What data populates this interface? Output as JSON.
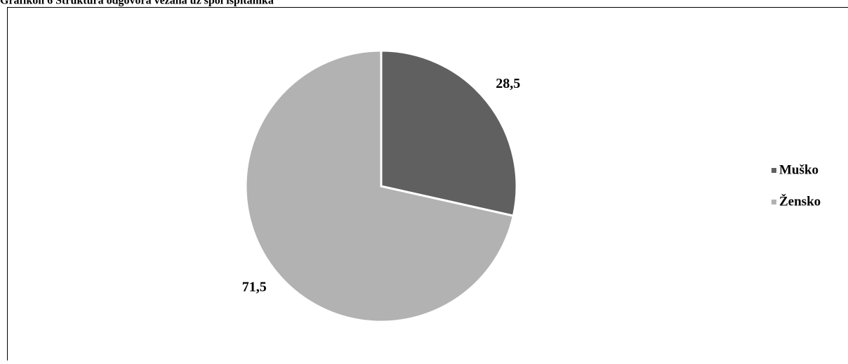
{
  "chart_data": {
    "type": "pie",
    "title": "Grafikon 6 Struktura odgovora vezana uz spol ispitanika",
    "categories": [
      "Muško",
      "Žensko"
    ],
    "values": [
      28.5,
      71.5
    ],
    "value_labels": [
      "28,5",
      "71,5"
    ],
    "colors": [
      "#606060",
      "#b2b2b2"
    ],
    "legend": "right"
  }
}
